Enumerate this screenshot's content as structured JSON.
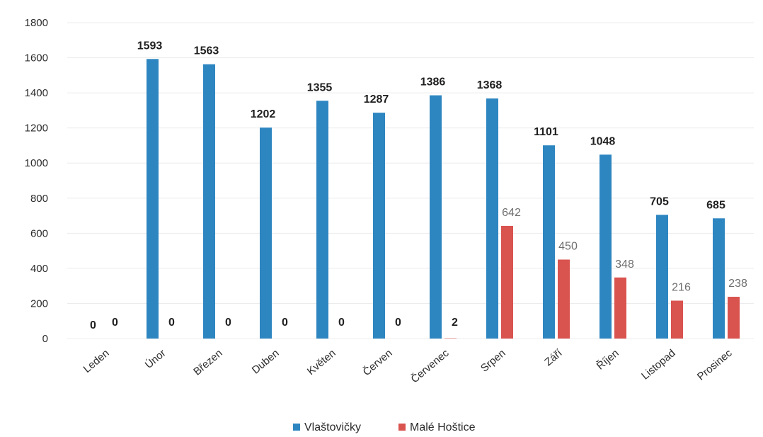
{
  "chart_data": {
    "type": "bar",
    "categories": [
      "Leden",
      "Únor",
      "Březen",
      "Duben",
      "Květen",
      "Červen",
      "Červenec",
      "Srpen",
      "Září",
      "Říjen",
      "Listopad",
      "Prosinec"
    ],
    "series": [
      {
        "name": "Vlaštovičky",
        "values": [
          0,
          1593,
          1563,
          1202,
          1355,
          1287,
          1386,
          1368,
          1101,
          1048,
          705,
          685
        ],
        "color": "#2e86c1"
      },
      {
        "name": "Malé Hoštice",
        "values": [
          0,
          0,
          0,
          0,
          0,
          0,
          2,
          642,
          450,
          348,
          216,
          238
        ],
        "color": "#d9534f"
      }
    ],
    "ylim": [
      0,
      1800
    ],
    "yticks": [
      0,
      200,
      400,
      600,
      800,
      1000,
      1200,
      1400,
      1600,
      1800
    ],
    "grid": true,
    "legend_position": "bottom",
    "title": "",
    "xlabel": "",
    "ylabel": ""
  }
}
